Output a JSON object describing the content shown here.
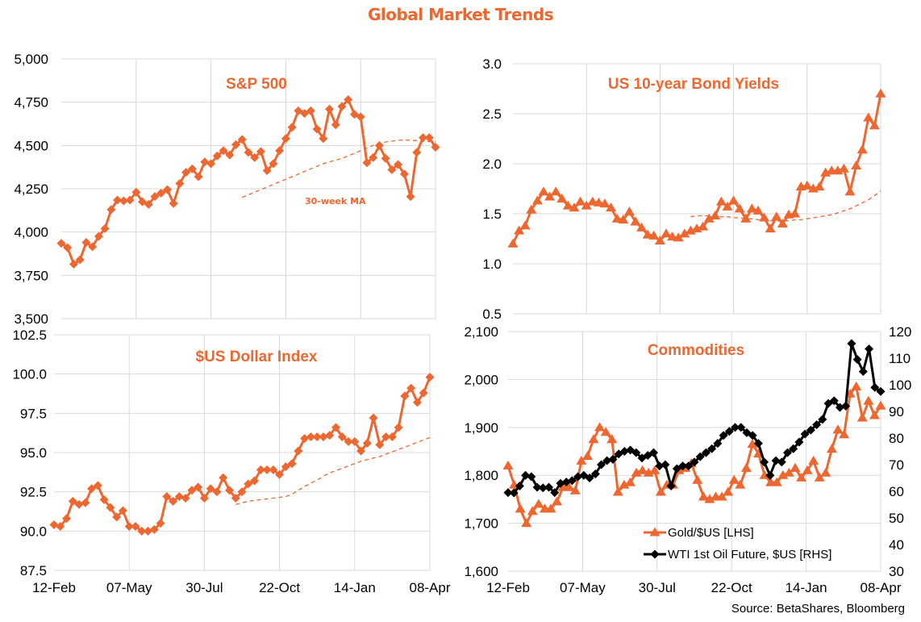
{
  "title": "Global Market Trends",
  "source": "Source: BetaShares, Bloomberg",
  "colors": {
    "orange": "#ED6731",
    "black": "#000000",
    "grid": "#D9D9D9"
  },
  "chart_data": [
    {
      "id": "sp500",
      "type": "line",
      "title": "S&P 500",
      "x_tick_labels": [
        "12-Feb",
        "07-May",
        "30-Jul",
        "22-Oct",
        "14-Jan",
        "08-Apr"
      ],
      "ylim": [
        3500,
        5000
      ],
      "y_ticks": [
        3500,
        3750,
        4000,
        4250,
        4500,
        4750,
        5000
      ],
      "y_tick_labels": [
        "3,500",
        "3,750",
        "4,000",
        "4,250",
        "4,500",
        "4,750",
        "5,000"
      ],
      "grid": true,
      "annotation": "30-week MA",
      "series": [
        {
          "name": "S&P 500",
          "marker": "diamond",
          "color": "#ED6731",
          "values": [
            3935,
            3910,
            3815,
            3840,
            3940,
            3915,
            3975,
            4020,
            4130,
            4185,
            4180,
            4185,
            4230,
            4175,
            4160,
            4205,
            4225,
            4245,
            4165,
            4280,
            4345,
            4365,
            4320,
            4405,
            4395,
            4440,
            4470,
            4445,
            4505,
            4535,
            4460,
            4430,
            4465,
            4355,
            4395,
            4470,
            4540,
            4605,
            4700,
            4685,
            4700,
            4595,
            4540,
            4710,
            4620,
            4725,
            4765,
            4680,
            4665,
            4400,
            4430,
            4500,
            4425,
            4360,
            4390,
            4335,
            4205,
            4460,
            4545,
            4545,
            4490
          ]
        },
        {
          "name": "30-week MA",
          "style": "dashed",
          "color": "#ED6731",
          "start_index": 29,
          "values": [
            4200,
            4215,
            4230,
            4245,
            4260,
            4275,
            4290,
            4305,
            4320,
            4335,
            4350,
            4365,
            4380,
            4395,
            4405,
            4415,
            4425,
            4440,
            4455,
            4470,
            4485,
            4500,
            4510,
            4520,
            4525,
            4530,
            4532,
            4530,
            4528,
            4525,
            4522,
            4520
          ]
        }
      ]
    },
    {
      "id": "bond",
      "type": "line",
      "title": "US 10-year Bond Yields",
      "x_tick_labels": [
        "12-Feb",
        "07-May",
        "30-Jul",
        "22-Oct",
        "14-Jan",
        "08-Apr"
      ],
      "ylim": [
        0.5,
        3.0
      ],
      "y_ticks": [
        0.5,
        1.0,
        1.5,
        2.0,
        2.5,
        3.0
      ],
      "y_tick_labels": [
        "0.5",
        "1.0",
        "1.5",
        "2.0",
        "2.5",
        "3.0"
      ],
      "grid": true,
      "series": [
        {
          "name": "US 10-year Bond Yield",
          "marker": "triangle",
          "color": "#ED6731",
          "values": [
            1.2,
            1.33,
            1.38,
            1.54,
            1.63,
            1.72,
            1.67,
            1.72,
            1.65,
            1.58,
            1.56,
            1.62,
            1.58,
            1.62,
            1.61,
            1.6,
            1.56,
            1.45,
            1.44,
            1.52,
            1.42,
            1.36,
            1.29,
            1.28,
            1.23,
            1.3,
            1.27,
            1.26,
            1.3,
            1.33,
            1.35,
            1.37,
            1.45,
            1.48,
            1.62,
            1.57,
            1.63,
            1.55,
            1.45,
            1.55,
            1.53,
            1.46,
            1.35,
            1.47,
            1.4,
            1.49,
            1.5,
            1.77,
            1.78,
            1.75,
            1.77,
            1.91,
            1.93,
            1.93,
            1.95,
            1.72,
            1.98,
            2.14,
            2.46,
            2.38,
            2.7
          ]
        },
        {
          "name": "30-week MA",
          "style": "dashed",
          "color": "#ED6731",
          "start_index": 29,
          "values": [
            1.47,
            1.48,
            1.48,
            1.48,
            1.48,
            1.47,
            1.47,
            1.46,
            1.46,
            1.45,
            1.45,
            1.44,
            1.44,
            1.43,
            1.43,
            1.43,
            1.43,
            1.44,
            1.44,
            1.45,
            1.46,
            1.47,
            1.48,
            1.49,
            1.51,
            1.53,
            1.55,
            1.58,
            1.61,
            1.64,
            1.68,
            1.73
          ]
        }
      ]
    },
    {
      "id": "dollar",
      "type": "line",
      "title": "$US Dollar Index",
      "x_tick_labels": [
        "12-Feb",
        "07-May",
        "30-Jul",
        "22-Oct",
        "14-Jan",
        "08-Apr"
      ],
      "ylim": [
        87.5,
        102.5
      ],
      "y_ticks": [
        87.5,
        90.0,
        92.5,
        95.0,
        97.5,
        100.0,
        102.5
      ],
      "y_tick_labels": [
        "87.5",
        "90.0",
        "92.5",
        "95.0",
        "97.5",
        "100.0",
        "102.5"
      ],
      "grid": true,
      "series": [
        {
          "name": "$US Dollar Index",
          "marker": "diamond",
          "color": "#ED6731",
          "values": [
            90.4,
            90.3,
            90.8,
            91.9,
            91.7,
            91.8,
            92.7,
            92.9,
            92.0,
            91.5,
            90.9,
            91.3,
            90.3,
            90.3,
            90.0,
            90.0,
            90.1,
            90.5,
            92.2,
            91.9,
            92.2,
            92.1,
            92.6,
            92.8,
            92.1,
            92.7,
            92.5,
            93.4,
            92.6,
            92.1,
            92.5,
            93.0,
            93.2,
            93.9,
            93.9,
            93.9,
            93.6,
            94.1,
            94.3,
            95.1,
            95.9,
            96.0,
            96.0,
            96.0,
            96.1,
            96.6,
            96.0,
            95.7,
            95.7,
            95.1,
            95.6,
            97.2,
            95.5,
            96.0,
            96.0,
            96.6,
            98.6,
            99.1,
            98.2,
            98.8,
            99.8
          ]
        },
        {
          "name": "30-week MA",
          "style": "dashed",
          "color": "#ED6731",
          "start_index": 29,
          "values": [
            91.7,
            91.8,
            91.9,
            91.95,
            92.0,
            92.05,
            92.1,
            92.15,
            92.2,
            92.35,
            92.6,
            92.85,
            93.05,
            93.25,
            93.5,
            93.7,
            93.85,
            94.0,
            94.15,
            94.3,
            94.45,
            94.55,
            94.65,
            94.75,
            94.9,
            95.05,
            95.2,
            95.35,
            95.5,
            95.65,
            95.8,
            95.95
          ]
        }
      ]
    },
    {
      "id": "commodities",
      "type": "line",
      "title": "Commodities",
      "x_tick_labels": [
        "12-Feb",
        "07-May",
        "30-Jul",
        "22-Oct",
        "14-Jan",
        "08-Apr"
      ],
      "ylim": [
        1600,
        2100
      ],
      "y_ticks": [
        1600,
        1700,
        1800,
        1900,
        2000,
        2100
      ],
      "y_tick_labels": [
        "1,600",
        "1,700",
        "1,800",
        "1,900",
        "2,000",
        "2,100"
      ],
      "y2lim": [
        30,
        120
      ],
      "y2_ticks": [
        30,
        40,
        50,
        60,
        70,
        80,
        90,
        100,
        110,
        120
      ],
      "y2_tick_labels": [
        "30",
        "40",
        "50",
        "60",
        "70",
        "80",
        "90",
        "100",
        "110",
        "120"
      ],
      "grid": true,
      "legend_position": "bottom-right",
      "series": [
        {
          "name": "Gold/$US [LHS]",
          "axis": "left",
          "marker": "triangle",
          "color": "#ED6731",
          "values": [
            1820,
            1780,
            1730,
            1700,
            1725,
            1740,
            1730,
            1730,
            1745,
            1775,
            1775,
            1768,
            1830,
            1840,
            1875,
            1900,
            1890,
            1875,
            1765,
            1780,
            1785,
            1805,
            1810,
            1805,
            1810,
            1765,
            1780,
            1780,
            1810,
            1815,
            1825,
            1790,
            1755,
            1750,
            1755,
            1755,
            1765,
            1790,
            1780,
            1815,
            1865,
            1845,
            1800,
            1785,
            1785,
            1800,
            1805,
            1815,
            1795,
            1810,
            1830,
            1795,
            1805,
            1855,
            1895,
            1885,
            1970,
            1985,
            1920,
            1955,
            1925,
            1945
          ]
        },
        {
          "name": "WTI 1st Oil Future, $US [RHS]",
          "axis": "right",
          "marker": "diamond",
          "color": "#000000",
          "values": [
            59.5,
            59.4,
            62.0,
            66.0,
            65.5,
            61.5,
            61.3,
            61.5,
            59.5,
            63.0,
            63.5,
            64.0,
            65.5,
            66.0,
            65.0,
            66.5,
            70.0,
            71.5,
            72.0,
            74.0,
            75.0,
            75.5,
            74.5,
            72.5,
            73.5,
            74.5,
            69.5,
            70.0,
            62.0,
            68.5,
            69.5,
            69.5,
            71.0,
            73.0,
            74.5,
            76.0,
            78.0,
            81.0,
            82.5,
            84.0,
            84.0,
            82.0,
            81.0,
            78.0,
            71.0,
            66.0,
            71.5,
            71.0,
            74.5,
            76.0,
            78.5,
            81.5,
            83.0,
            85.0,
            87.0,
            93.0,
            94.0,
            91.5,
            92.0,
            115.5,
            109.5,
            105.0,
            113.5,
            99.0,
            97.5
          ]
        }
      ]
    }
  ]
}
